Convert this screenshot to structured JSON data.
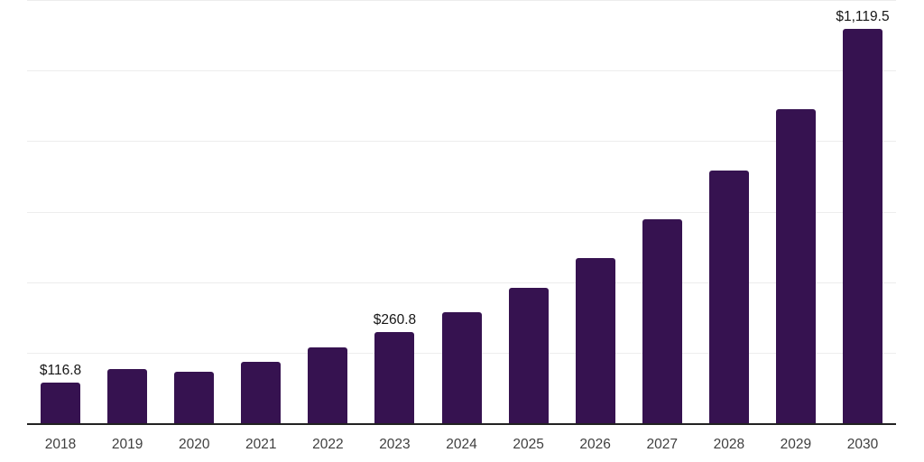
{
  "chart_data": {
    "type": "bar",
    "title": "",
    "xlabel": "",
    "ylabel": "",
    "categories": [
      "2018",
      "2019",
      "2020",
      "2021",
      "2022",
      "2023",
      "2024",
      "2025",
      "2026",
      "2027",
      "2028",
      "2029",
      "2030"
    ],
    "values": [
      116.8,
      155.2,
      147.6,
      175.8,
      218.4,
      260.8,
      316.2,
      385.9,
      470.8,
      579.7,
      718.3,
      893.1,
      1119.5
    ],
    "data_labels": {
      "2018": "$116.8",
      "2023": "$260.8",
      "2030": "$1,119.5"
    },
    "ylim": [
      0,
      1200
    ],
    "gridline_step": 200,
    "grid": "horizontal",
    "legend_position": "none",
    "y_axis_labels_visible": false,
    "colors": {
      "bar": "#361250",
      "axis": "#222222",
      "gridline": "#ededed",
      "tick_label": "#3f3f3f",
      "data_label": "#161616",
      "background": "#ffffff"
    }
  }
}
